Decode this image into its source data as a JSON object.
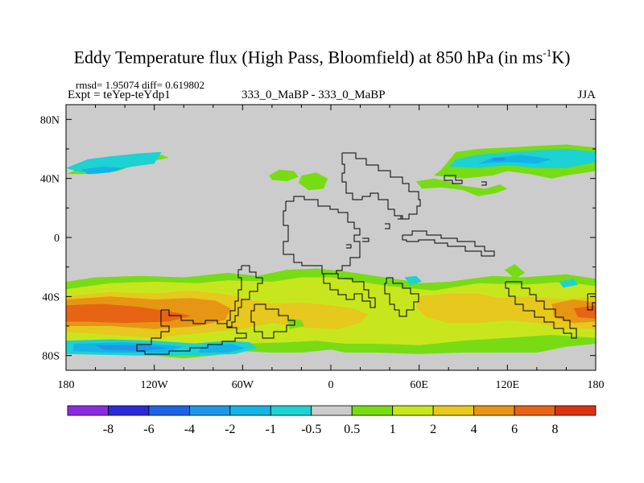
{
  "title_main": "Eddy Temperature flux (High Pass, Bloomfield) at 850 hPa (in ms",
  "title_sup": "-1",
  "title_end": "K)",
  "stats_line": "rmsd= 1.95074 diff= 0.619802",
  "expt_line": "Expt = teYep-teYdp1",
  "center_label": "333_0_MaBP - 333_0_MaBP",
  "season": "JJA",
  "chart_data": {
    "type": "heatmap",
    "projection": "cylindrical-equidistant",
    "lon_range": [
      -180,
      180
    ],
    "lat_range": [
      -90,
      90
    ],
    "x_ticks": [
      {
        "value": -180,
        "label": "180"
      },
      {
        "value": -120,
        "label": "120W"
      },
      {
        "value": -60,
        "label": "60W"
      },
      {
        "value": 0,
        "label": "0"
      },
      {
        "value": 60,
        "label": "60E"
      },
      {
        "value": 120,
        "label": "120E"
      },
      {
        "value": 180,
        "label": "180"
      }
    ],
    "y_ticks": [
      {
        "value": 80,
        "label": "80N"
      },
      {
        "value": 40,
        "label": "40N"
      },
      {
        "value": 0,
        "label": "0"
      },
      {
        "value": -40,
        "label": "40S"
      },
      {
        "value": -80,
        "label": "80S"
      }
    ],
    "colorbar": {
      "levels": [
        "-8",
        "-6",
        "-4",
        "-2",
        "-1",
        "-0.5",
        "0.5",
        "1",
        "2",
        "4",
        "6",
        "8"
      ],
      "colors": [
        "#8a2be2",
        "#2a2ad6",
        "#1e64e6",
        "#1e96e8",
        "#14b4e6",
        "#1cd2d2",
        "#cccccc",
        "#78dc14",
        "#c8e61e",
        "#e6c81e",
        "#e69614",
        "#e66414",
        "#dc3214"
      ]
    },
    "background_value_color": "#cccccc",
    "regions": [
      {
        "level": 7,
        "poly": [
          [
            -180,
            -30
          ],
          [
            -160,
            -27
          ],
          [
            -130,
            -26
          ],
          [
            -100,
            -27
          ],
          [
            -70,
            -24
          ],
          [
            -50,
            -26
          ],
          [
            -30,
            -22
          ],
          [
            -10,
            -21
          ],
          [
            10,
            -23
          ],
          [
            30,
            -26
          ],
          [
            50,
            -29
          ],
          [
            60,
            -31
          ],
          [
            80,
            -30
          ],
          [
            110,
            -26
          ],
          [
            130,
            -27
          ],
          [
            160,
            -25
          ],
          [
            180,
            -28
          ],
          [
            180,
            -72
          ],
          [
            160,
            -74
          ],
          [
            140,
            -78
          ],
          [
            120,
            -78
          ],
          [
            90,
            -78
          ],
          [
            60,
            -79
          ],
          [
            30,
            -78
          ],
          [
            10,
            -78
          ],
          [
            0,
            -76
          ],
          [
            -20,
            -78
          ],
          [
            -40,
            -78
          ],
          [
            -60,
            -77
          ],
          [
            -80,
            -80
          ],
          [
            -100,
            -82
          ],
          [
            -140,
            -78
          ],
          [
            -180,
            -78
          ]
        ]
      },
      {
        "level": 8,
        "poly": [
          [
            -180,
            -35
          ],
          [
            -150,
            -31
          ],
          [
            -120,
            -30
          ],
          [
            -90,
            -31
          ],
          [
            -70,
            -29
          ],
          [
            -40,
            -30
          ],
          [
            -20,
            -27
          ],
          [
            0,
            -27
          ],
          [
            20,
            -30
          ],
          [
            40,
            -33
          ],
          [
            70,
            -36
          ],
          [
            100,
            -31
          ],
          [
            130,
            -32
          ],
          [
            160,
            -30
          ],
          [
            180,
            -33
          ],
          [
            180,
            -68
          ],
          [
            150,
            -66
          ],
          [
            120,
            -68
          ],
          [
            90,
            -70
          ],
          [
            60,
            -73
          ],
          [
            30,
            -72
          ],
          [
            10,
            -72
          ],
          [
            -10,
            -70
          ],
          [
            -30,
            -71
          ],
          [
            -60,
            -72
          ],
          [
            -90,
            -74
          ],
          [
            -120,
            -74
          ],
          [
            -150,
            -70
          ],
          [
            -180,
            -70
          ]
        ]
      },
      {
        "level": 9,
        "poly": [
          [
            -180,
            -40
          ],
          [
            -150,
            -37
          ],
          [
            -120,
            -38
          ],
          [
            -95,
            -36
          ],
          [
            -75,
            -38
          ],
          [
            -55,
            -42
          ],
          [
            -40,
            -45
          ],
          [
            -20,
            -44
          ],
          [
            0,
            -46
          ],
          [
            15,
            -48
          ],
          [
            25,
            -52
          ],
          [
            20,
            -58
          ],
          [
            5,
            -62
          ],
          [
            -20,
            -61
          ],
          [
            -40,
            -58
          ],
          [
            -60,
            -62
          ],
          [
            -80,
            -64
          ],
          [
            -100,
            -66
          ],
          [
            -120,
            -68
          ],
          [
            -150,
            -66
          ],
          [
            -180,
            -64
          ]
        ]
      },
      {
        "level": 9,
        "poly": [
          [
            60,
            -40
          ],
          [
            80,
            -38
          ],
          [
            100,
            -38
          ],
          [
            115,
            -41
          ],
          [
            135,
            -40
          ],
          [
            160,
            -42
          ],
          [
            180,
            -40
          ],
          [
            180,
            -62
          ],
          [
            160,
            -62
          ],
          [
            140,
            -58
          ],
          [
            120,
            -56
          ],
          [
            100,
            -58
          ],
          [
            80,
            -58
          ],
          [
            65,
            -54
          ],
          [
            58,
            -47
          ]
        ]
      },
      {
        "level": 10,
        "poly": [
          [
            -180,
            -42
          ],
          [
            -150,
            -40
          ],
          [
            -120,
            -42
          ],
          [
            -95,
            -41
          ],
          [
            -78,
            -43
          ],
          [
            -68,
            -48
          ],
          [
            -72,
            -56
          ],
          [
            -90,
            -60
          ],
          [
            -120,
            -62
          ],
          [
            -150,
            -60
          ],
          [
            -180,
            -60
          ]
        ]
      },
      {
        "level": 11,
        "poly": [
          [
            -180,
            -46
          ],
          [
            -155,
            -45
          ],
          [
            -130,
            -47
          ],
          [
            -110,
            -50
          ],
          [
            -95,
            -53
          ],
          [
            -110,
            -57
          ],
          [
            -140,
            -58
          ],
          [
            -165,
            -57
          ],
          [
            -180,
            -57
          ]
        ]
      },
      {
        "level": 10,
        "poly": [
          [
            150,
            -45
          ],
          [
            165,
            -42
          ],
          [
            180,
            -44
          ],
          [
            180,
            -57
          ],
          [
            165,
            -58
          ],
          [
            152,
            -54
          ]
        ]
      },
      {
        "level": 11,
        "poly": [
          [
            165,
            -48
          ],
          [
            180,
            -46
          ],
          [
            180,
            -55
          ],
          [
            168,
            -54
          ]
        ]
      },
      {
        "level": 5,
        "poly": [
          [
            -180,
            -70
          ],
          [
            -150,
            -69
          ],
          [
            -120,
            -70
          ],
          [
            -90,
            -72
          ],
          [
            -75,
            -75
          ],
          [
            -90,
            -80
          ],
          [
            -130,
            -80
          ],
          [
            -180,
            -79
          ]
        ]
      },
      {
        "level": 4,
        "poly": [
          [
            -175,
            -72
          ],
          [
            -140,
            -71
          ],
          [
            -110,
            -73
          ],
          [
            -90,
            -75
          ],
          [
            -110,
            -78
          ],
          [
            -150,
            -78
          ],
          [
            -175,
            -77
          ]
        ]
      },
      {
        "level": 3,
        "poly": [
          [
            -160,
            -73
          ],
          [
            -130,
            -73
          ],
          [
            -110,
            -75
          ],
          [
            -130,
            -77
          ],
          [
            -155,
            -76
          ]
        ]
      },
      {
        "level": 5,
        "poly": [
          [
            -95,
            -72
          ],
          [
            -70,
            -70
          ],
          [
            -55,
            -71
          ],
          [
            -50,
            -75
          ],
          [
            -65,
            -79
          ],
          [
            -95,
            -80
          ],
          [
            -110,
            -77
          ]
        ]
      },
      {
        "level": 4,
        "poly": [
          [
            -88,
            -74
          ],
          [
            -68,
            -72
          ],
          [
            -58,
            -75
          ],
          [
            -70,
            -78
          ],
          [
            -90,
            -78
          ]
        ]
      },
      {
        "level": 7,
        "poly": [
          [
            -180,
            43
          ],
          [
            -170,
            47
          ],
          [
            -150,
            48
          ],
          [
            -140,
            52
          ],
          [
            -130,
            55
          ],
          [
            -115,
            56
          ],
          [
            -110,
            54
          ],
          [
            -130,
            50
          ],
          [
            -145,
            45
          ],
          [
            -160,
            43
          ]
        ]
      },
      {
        "level": 5,
        "poly": [
          [
            -180,
            47
          ],
          [
            -165,
            53
          ],
          [
            -150,
            55
          ],
          [
            -130,
            57
          ],
          [
            -115,
            58
          ],
          [
            -120,
            50
          ],
          [
            -135,
            48
          ],
          [
            -155,
            45
          ],
          [
            -170,
            44
          ]
        ]
      },
      {
        "level": 4,
        "poly": [
          [
            -170,
            46
          ],
          [
            -155,
            48
          ],
          [
            -140,
            47
          ],
          [
            -150,
            44
          ],
          [
            -165,
            43
          ]
        ]
      },
      {
        "level": 7,
        "poly": [
          [
            70,
            42
          ],
          [
            90,
            40
          ],
          [
            110,
            42
          ],
          [
            120,
            45
          ],
          [
            135,
            43
          ],
          [
            150,
            40
          ],
          [
            160,
            42
          ],
          [
            180,
            45
          ],
          [
            180,
            61
          ],
          [
            160,
            63
          ],
          [
            140,
            62
          ],
          [
            120,
            61
          ],
          [
            100,
            60
          ],
          [
            85,
            58
          ],
          [
            80,
            52
          ],
          [
            75,
            46
          ]
        ]
      },
      {
        "level": 5,
        "poly": [
          [
            80,
            48
          ],
          [
            100,
            47
          ],
          [
            120,
            49
          ],
          [
            140,
            47
          ],
          [
            160,
            47
          ],
          [
            180,
            51
          ],
          [
            180,
            58
          ],
          [
            160,
            60
          ],
          [
            140,
            59
          ],
          [
            120,
            58
          ],
          [
            100,
            56
          ],
          [
            85,
            53
          ]
        ]
      },
      {
        "level": 4,
        "poly": [
          [
            100,
            50
          ],
          [
            120,
            51
          ],
          [
            140,
            50
          ],
          [
            150,
            53
          ],
          [
            130,
            56
          ],
          [
            110,
            54
          ]
        ]
      },
      {
        "level": 3,
        "poly": [
          [
            110,
            52
          ],
          [
            118,
            52
          ],
          [
            118,
            54
          ],
          [
            110,
            54
          ]
        ]
      },
      {
        "level": 7,
        "poly": [
          [
            -42,
            42
          ],
          [
            -35,
            46
          ],
          [
            -25,
            45
          ],
          [
            -22,
            41
          ],
          [
            -30,
            38
          ],
          [
            -40,
            39
          ]
        ]
      },
      {
        "level": 7,
        "poly": [
          [
            -20,
            42
          ],
          [
            -10,
            44
          ],
          [
            -2,
            40
          ],
          [
            -5,
            33
          ],
          [
            -15,
            32
          ],
          [
            -22,
            37
          ]
        ]
      },
      {
        "level": 7,
        "poly": [
          [
            58,
            38
          ],
          [
            70,
            40
          ],
          [
            80,
            38
          ],
          [
            90,
            35
          ],
          [
            105,
            33
          ],
          [
            115,
            36
          ],
          [
            120,
            33
          ],
          [
            112,
            30
          ],
          [
            100,
            28
          ],
          [
            90,
            32
          ],
          [
            75,
            34
          ],
          [
            62,
            33
          ]
        ]
      },
      {
        "level": 7,
        "poly": [
          [
            118,
            -22
          ],
          [
            125,
            -18
          ],
          [
            132,
            -24
          ],
          [
            125,
            -28
          ]
        ]
      },
      {
        "level": 7,
        "poly": [
          [
            -30,
            -55
          ],
          [
            -20,
            -56
          ],
          [
            -18,
            -60
          ],
          [
            -28,
            -62
          ]
        ]
      },
      {
        "level": 5,
        "poly": [
          [
            50,
            -27
          ],
          [
            58,
            -26
          ],
          [
            62,
            -30
          ],
          [
            54,
            -32
          ]
        ]
      },
      {
        "level": 5,
        "poly": [
          [
            155,
            -30
          ],
          [
            165,
            -28
          ],
          [
            168,
            -32
          ],
          [
            158,
            -34
          ]
        ]
      }
    ]
  }
}
